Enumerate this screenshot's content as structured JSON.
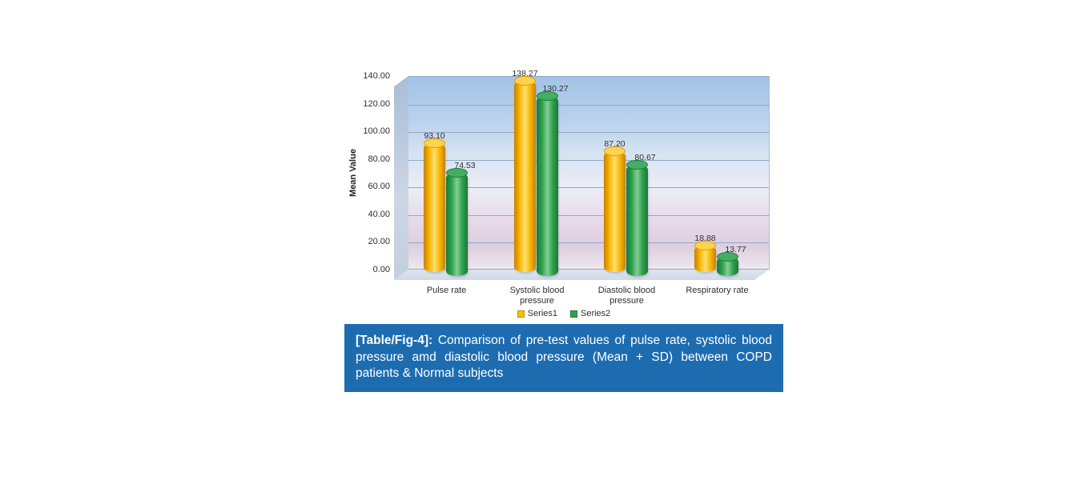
{
  "figure": {
    "caption": {
      "label": "[Table/Fig-4]:",
      "text": "Comparison of pre-test values of pulse rate, systolic blood pressure amd diastolic blood pressure (Mean + SD) between COPD patients & Normal subjects",
      "bg_color": "#1D6CB0",
      "text_color": "#FFFFFF"
    }
  },
  "chart_data": {
    "type": "bar",
    "style": "3d-cylinder",
    "title": "",
    "xlabel": "",
    "ylabel": "Mean Value",
    "ylim": [
      0,
      140
    ],
    "ytick_step": 20,
    "yticks": [
      "140.00",
      "120.00",
      "100.00",
      "80.00",
      "60.00",
      "40.00",
      "20.00",
      "0.00"
    ],
    "grid": true,
    "legend_position": "bottom",
    "plot_bg_colors": [
      "#A2C3E7",
      "#D8E4F3",
      "#ECEEF5",
      "#E6D9E9",
      "#EFE7EF"
    ],
    "categories": [
      "Pulse rate",
      "Systolic blood pressure",
      "Diastolic blood pressure",
      "Respiratory rate"
    ],
    "series": [
      {
        "name": "Series1",
        "color": "#FFC000",
        "values": [
          93.1,
          138.27,
          87.2,
          18.88
        ],
        "labels": [
          "93.10",
          "138.27",
          "87.20",
          "18.88"
        ],
        "shades": {
          "edge": "#C77F00",
          "mid": "#F7B500",
          "light": "#FFE070",
          "cap": "#FFD34D",
          "capEdge": "#DE9E00"
        }
      },
      {
        "name": "Series2",
        "color": "#2EA04C",
        "values": [
          74.53,
          130.27,
          80.67,
          13.77
        ],
        "labels": [
          "74.53",
          "130.27",
          "80.67",
          "13.77"
        ],
        "shades": {
          "edge": "#187A34",
          "mid": "#2EA04C",
          "light": "#83CE96",
          "cap": "#43AE61",
          "capEdge": "#1C7D37"
        }
      }
    ]
  }
}
